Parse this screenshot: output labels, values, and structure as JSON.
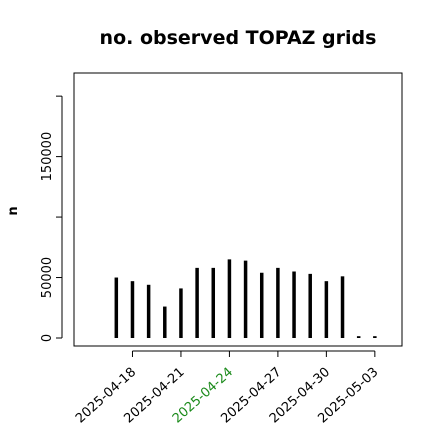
{
  "chart_data": {
    "type": "bar",
    "title": "no. observed TOPAZ grids",
    "xlabel": "",
    "ylabel": "n",
    "ylim": [
      0,
      215000
    ],
    "yticks": [
      0,
      50000,
      150000
    ],
    "y_minor_ticks": [
      100000,
      200000
    ],
    "xlim_dates": [
      "2025-04-15",
      "2025-05-04"
    ],
    "xticks": [
      {
        "label": "2025-04-18",
        "color": "#000000"
      },
      {
        "label": "2025-04-21",
        "color": "#000000"
      },
      {
        "label": "2025-04-24",
        "color": "#1a8a1a"
      },
      {
        "label": "2025-04-27",
        "color": "#000000"
      },
      {
        "label": "2025-04-30",
        "color": "#000000"
      },
      {
        "label": "2025-05-03",
        "color": "#000000"
      }
    ],
    "x": [
      "2025-04-17",
      "2025-04-18",
      "2025-04-19",
      "2025-04-20",
      "2025-04-21",
      "2025-04-22",
      "2025-04-23",
      "2025-04-24",
      "2025-04-25",
      "2025-04-26",
      "2025-04-27",
      "2025-04-28",
      "2025-04-29",
      "2025-04-30",
      "2025-05-01",
      "2025-05-02",
      "2025-05-03"
    ],
    "values": [
      50000,
      47000,
      44000,
      26000,
      41000,
      58000,
      58000,
      65000,
      64000,
      54000,
      58000,
      55000,
      53000,
      47000,
      51000,
      1500,
      1500
    ],
    "bar_color": "#000000",
    "grid": false
  }
}
